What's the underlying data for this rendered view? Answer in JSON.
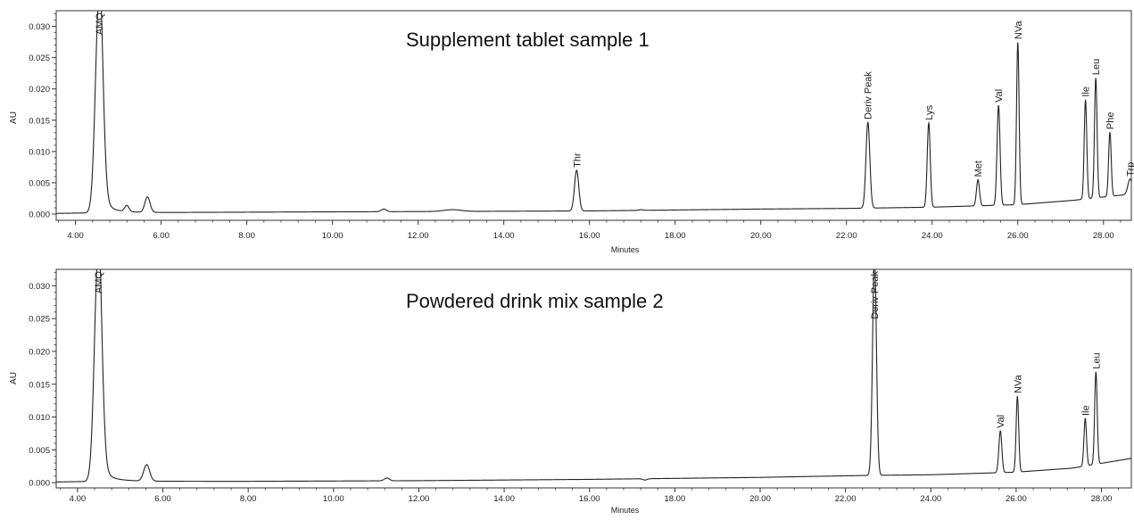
{
  "chart_data": [
    {
      "type": "line",
      "title": "Supplement tablet sample 1",
      "xlabel": "Minutes",
      "ylabel": "AU",
      "xlim": [
        3.55,
        28.65
      ],
      "ylim": [
        -0.001,
        0.0325
      ],
      "x_ticks": [
        "4.00",
        "6.00",
        "8.00",
        "10.00",
        "12.00",
        "14.00",
        "16.00",
        "18.00",
        "20.00",
        "22.00",
        "24.00",
        "26.00",
        "28.00"
      ],
      "y_ticks": [
        "0.000",
        "0.005",
        "0.010",
        "0.015",
        "0.020",
        "0.025",
        "0.030"
      ],
      "baseline": [
        [
          3.55,
          0.0001
        ],
        [
          4.43,
          0.0002
        ],
        [
          8,
          0.0003
        ],
        [
          12,
          0.0004
        ],
        [
          16,
          0.0005
        ],
        [
          20,
          0.0008
        ],
        [
          22,
          0.0009
        ],
        [
          24,
          0.0011
        ],
        [
          26,
          0.0015
        ],
        [
          27.3,
          0.0022
        ],
        [
          28.65,
          0.0032
        ]
      ],
      "peaks": [
        {
          "label": "AMQ",
          "x": 4.55,
          "y": 0.0345,
          "width": 0.085,
          "tail": true
        },
        {
          "label": "",
          "x": 5.2,
          "y": 0.0012,
          "width": 0.05
        },
        {
          "label": "",
          "x": 5.68,
          "y": 0.0027,
          "width": 0.06
        },
        {
          "label": "",
          "x": 11.2,
          "y": 0.0008,
          "width": 0.06
        },
        {
          "label": "",
          "x": 12.8,
          "y": 0.0007,
          "width": 0.2
        },
        {
          "label": "Thr",
          "x": 15.7,
          "y": 0.007,
          "width": 0.05
        },
        {
          "label": "",
          "x": 17.2,
          "y": 0.0007,
          "width": 0.05
        },
        {
          "label": "Deriv Peak",
          "x": 22.5,
          "y": 0.0147,
          "width": 0.045
        },
        {
          "label": "Lys",
          "x": 23.92,
          "y": 0.0146,
          "width": 0.035
        },
        {
          "label": "Met",
          "x": 25.07,
          "y": 0.0055,
          "width": 0.035
        },
        {
          "label": "Val",
          "x": 25.55,
          "y": 0.0174,
          "width": 0.035
        },
        {
          "label": "NVa",
          "x": 26.0,
          "y": 0.0275,
          "width": 0.03
        },
        {
          "label": "Ile",
          "x": 27.58,
          "y": 0.0183,
          "width": 0.03
        },
        {
          "label": "Leu",
          "x": 27.82,
          "y": 0.0218,
          "width": 0.03
        },
        {
          "label": "Phe",
          "x": 28.15,
          "y": 0.0131,
          "width": 0.03
        },
        {
          "label": "Trp",
          "x": 28.62,
          "y": 0.0056,
          "width": 0.05
        }
      ]
    },
    {
      "type": "line",
      "title": "Powdered drink mix sample 2",
      "xlabel": "Minutes",
      "ylabel": "AU",
      "xlim": [
        3.5,
        28.7
      ],
      "ylim": [
        -0.0008,
        0.0325
      ],
      "x_ticks": [
        "4.00",
        "6.00",
        "8.00",
        "10.00",
        "12.00",
        "14.00",
        "16.00",
        "18.00",
        "20.00",
        "22.00",
        "24.00",
        "26.00",
        "28.00"
      ],
      "y_ticks": [
        "0.000",
        "0.005",
        "0.010",
        "0.015",
        "0.020",
        "0.025",
        "0.030"
      ],
      "baseline": [
        [
          3.5,
          0.0001
        ],
        [
          4.4,
          0.0002
        ],
        [
          8,
          0.0002
        ],
        [
          12,
          0.0003
        ],
        [
          16,
          0.0005
        ],
        [
          20,
          0.0008
        ],
        [
          22.5,
          0.0011
        ],
        [
          24,
          0.0012
        ],
        [
          26,
          0.0016
        ],
        [
          27.3,
          0.0022
        ],
        [
          28.7,
          0.0037
        ]
      ],
      "peaks": [
        {
          "label": "AMQ",
          "x": 4.48,
          "y": 0.0345,
          "width": 0.085,
          "tail": true
        },
        {
          "label": "",
          "x": 5.62,
          "y": 0.0027,
          "width": 0.07
        },
        {
          "label": "",
          "x": 11.25,
          "y": 0.0007,
          "width": 0.06
        },
        {
          "label": "",
          "x": 17.3,
          "y": 0.0004,
          "width": 0.05
        },
        {
          "label": "Deriv Peak",
          "x": 22.68,
          "y": 0.0345,
          "width": 0.045
        },
        {
          "label": "Val",
          "x": 25.63,
          "y": 0.0079,
          "width": 0.035
        },
        {
          "label": "NVa",
          "x": 26.03,
          "y": 0.0132,
          "width": 0.03
        },
        {
          "label": "Ile",
          "x": 27.62,
          "y": 0.0098,
          "width": 0.03
        },
        {
          "label": "Leu",
          "x": 27.87,
          "y": 0.0169,
          "width": 0.03
        }
      ]
    }
  ]
}
